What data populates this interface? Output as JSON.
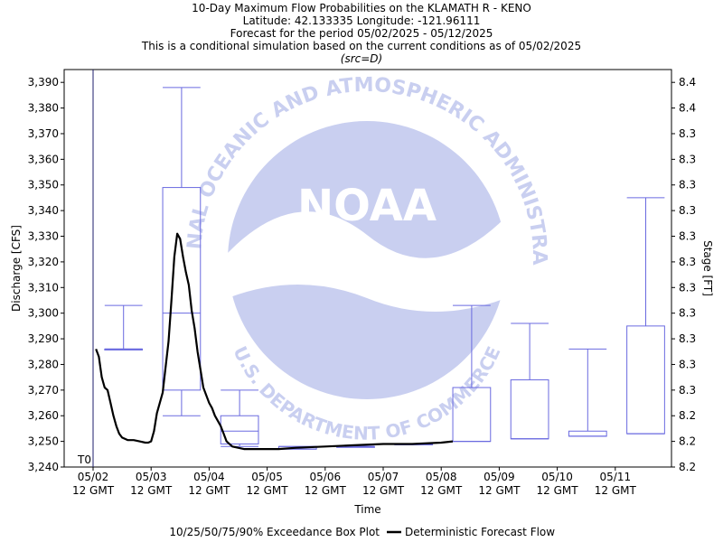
{
  "chart_data": {
    "type": "box",
    "title_lines": [
      "10-Day Maximum Flow Probabilities on the KLAMATH R - KENO",
      "Latitude: 42.133335 Longitude: -121.96111",
      "Forecast for the period 05/02/2025 - 05/12/2025",
      "This is a conditional simulation based on the current conditions as of 05/02/2025",
      "(src=D)"
    ],
    "xlabel": "Time",
    "ylabel": "Discharge [CFS]",
    "y2label": "Stage [FT]",
    "ylim": [
      3240,
      3395
    ],
    "x_range_days": [
      0,
      10.2
    ],
    "x_ticks": [
      {
        "day": 0,
        "date": "05/02",
        "time": "12 GMT"
      },
      {
        "day": 1,
        "date": "05/03",
        "time": "12 GMT"
      },
      {
        "day": 2,
        "date": "05/04",
        "time": "12 GMT"
      },
      {
        "day": 3,
        "date": "05/05",
        "time": "12 GMT"
      },
      {
        "day": 4,
        "date": "05/06",
        "time": "12 GMT"
      },
      {
        "day": 5,
        "date": "05/07",
        "time": "12 GMT"
      },
      {
        "day": 6,
        "date": "05/08",
        "time": "12 GMT"
      },
      {
        "day": 7,
        "date": "05/09",
        "time": "12 GMT"
      },
      {
        "day": 8,
        "date": "05/10",
        "time": "12 GMT"
      },
      {
        "day": 9,
        "date": "05/11",
        "time": "12 GMT"
      }
    ],
    "y_ticks": [
      {
        "value": 3240,
        "label": "3,240",
        "stage": "8.2"
      },
      {
        "value": 3250,
        "label": "3,250",
        "stage": "8.2"
      },
      {
        "value": 3260,
        "label": "3,260",
        "stage": "8.2"
      },
      {
        "value": 3270,
        "label": "3,270",
        "stage": "8.3"
      },
      {
        "value": 3280,
        "label": "3,280",
        "stage": "8.3"
      },
      {
        "value": 3290,
        "label": "3,290",
        "stage": "8.3"
      },
      {
        "value": 3300,
        "label": "3,300",
        "stage": "8.3"
      },
      {
        "value": 3310,
        "label": "3,310",
        "stage": "8.3"
      },
      {
        "value": 3320,
        "label": "3,320",
        "stage": "8.3"
      },
      {
        "value": 3330,
        "label": "3,330",
        "stage": "8.3"
      },
      {
        "value": 3340,
        "label": "3,340",
        "stage": "8.3"
      },
      {
        "value": 3350,
        "label": "3,350",
        "stage": "8.3"
      },
      {
        "value": 3360,
        "label": "3,360",
        "stage": "8.3"
      },
      {
        "value": 3370,
        "label": "3,370",
        "stage": "8.3"
      },
      {
        "value": 3380,
        "label": "3,380",
        "stage": "8.4"
      },
      {
        "value": 3390,
        "label": "3,390",
        "stage": "8.4"
      }
    ],
    "t0_label": "T0",
    "t0_day": 0,
    "boxes": [
      {
        "start": 0.2,
        "end": 0.85,
        "p10": 3286,
        "p25": 3286,
        "p50": 3286,
        "p75": 3286,
        "p90": 3303
      },
      {
        "start": 1.2,
        "end": 1.85,
        "p10": 3260,
        "p25": 3270,
        "p50": 3300,
        "p75": 3349,
        "p90": 3388
      },
      {
        "start": 2.2,
        "end": 2.85,
        "p10": 3248,
        "p25": 3249,
        "p50": 3254,
        "p75": 3260,
        "p90": 3270
      },
      {
        "start": 3.2,
        "end": 3.85,
        "p10": 3247,
        "p25": 3247,
        "p50": 3247,
        "p75": 3248,
        "p90": 3248
      },
      {
        "start": 4.2,
        "end": 4.85,
        "p10": 3248,
        "p25": 3248,
        "p50": 3248,
        "p75": 3248,
        "p90": 3248
      },
      {
        "start": 5.2,
        "end": 5.85,
        "p10": 3249,
        "p25": 3249,
        "p50": 3249,
        "p75": 3249,
        "p90": 3249
      },
      {
        "start": 6.2,
        "end": 6.85,
        "p10": 3250,
        "p25": 3250,
        "p50": 3250,
        "p75": 3271,
        "p90": 3303
      },
      {
        "start": 7.2,
        "end": 7.85,
        "p10": 3251,
        "p25": 3251,
        "p50": 3251,
        "p75": 3274,
        "p90": 3296
      },
      {
        "start": 8.2,
        "end": 8.85,
        "p10": 3252,
        "p25": 3252,
        "p50": 3252,
        "p75": 3254,
        "p90": 3286
      },
      {
        "start": 9.2,
        "end": 9.85,
        "p10": 3253,
        "p25": 3253,
        "p50": 3253,
        "p75": 3295,
        "p90": 3345
      }
    ],
    "deterministic": [
      [
        0.05,
        3286
      ],
      [
        0.1,
        3283
      ],
      [
        0.15,
        3275
      ],
      [
        0.2,
        3271
      ],
      [
        0.25,
        3270
      ],
      [
        0.3,
        3265
      ],
      [
        0.35,
        3260
      ],
      [
        0.4,
        3256
      ],
      [
        0.45,
        3253
      ],
      [
        0.5,
        3251.5
      ],
      [
        0.6,
        3250.5
      ],
      [
        0.7,
        3250.5
      ],
      [
        0.8,
        3250
      ],
      [
        0.9,
        3249.5
      ],
      [
        0.95,
        3249.5
      ],
      [
        1.0,
        3250
      ],
      [
        1.05,
        3254
      ],
      [
        1.1,
        3261
      ],
      [
        1.2,
        3269
      ],
      [
        1.3,
        3289
      ],
      [
        1.35,
        3305
      ],
      [
        1.4,
        3322
      ],
      [
        1.45,
        3331
      ],
      [
        1.5,
        3329
      ],
      [
        1.55,
        3322
      ],
      [
        1.6,
        3316
      ],
      [
        1.65,
        3311
      ],
      [
        1.7,
        3301
      ],
      [
        1.75,
        3294
      ],
      [
        1.8,
        3285
      ],
      [
        1.85,
        3278
      ],
      [
        1.9,
        3271
      ],
      [
        1.95,
        3268
      ],
      [
        2.0,
        3265
      ],
      [
        2.05,
        3263
      ],
      [
        2.1,
        3260
      ],
      [
        2.2,
        3256
      ],
      [
        2.25,
        3253
      ],
      [
        2.3,
        3250
      ],
      [
        2.4,
        3248
      ],
      [
        2.5,
        3247.5
      ],
      [
        2.6,
        3247
      ],
      [
        2.8,
        3247
      ],
      [
        3.0,
        3247
      ],
      [
        3.2,
        3247
      ],
      [
        3.5,
        3247.5
      ],
      [
        4.0,
        3248
      ],
      [
        4.5,
        3248.5
      ],
      [
        5.0,
        3249
      ],
      [
        5.5,
        3249
      ],
      [
        6.0,
        3249.5
      ],
      [
        6.2,
        3250
      ]
    ],
    "legend": {
      "box_label": "10/25/50/75/90% Exceedance Box Plot",
      "line_label": "Deterministic Forecast Flow"
    },
    "colors": {
      "box": "#6a6ae0",
      "line": "#000000",
      "axis": "#000000",
      "t0_line": "#1c1c6e",
      "watermark": "#c9cff0"
    }
  },
  "watermark": {
    "logo_text": "NOAA",
    "ring_text": "NATIONAL OCEANIC AND ATMOSPHERIC ADMINISTRATION",
    "bottom_text": "U.S. DEPARTMENT OF COMMERCE"
  }
}
